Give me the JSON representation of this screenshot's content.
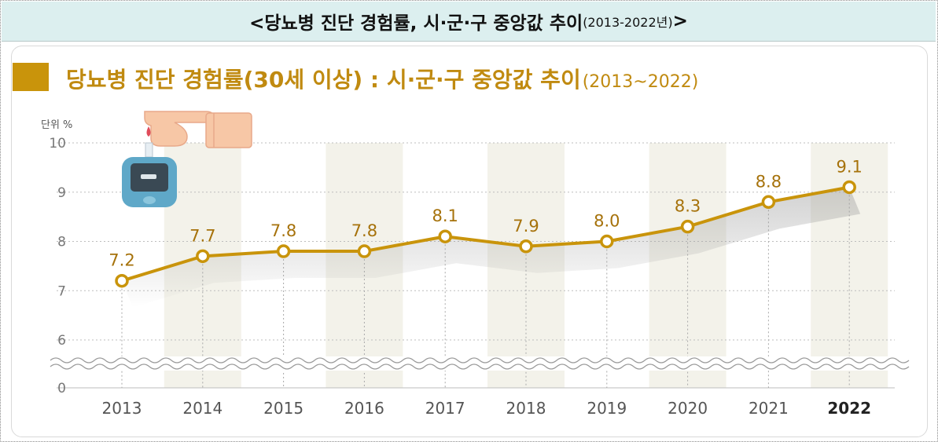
{
  "banner": {
    "title": "<당뇨병 진단 경험률, 시·군·구 중앙값 추이",
    "period": "(2013-2022년)",
    "close": ">"
  },
  "header": {
    "title": "당뇨병 진단 경험률(30세 이상) : 시·군·구 중앙값 추이",
    "period": "(2013~2022)"
  },
  "unit_label": "단위 %",
  "illustration": {
    "icon": "glucose-meter-icon",
    "hand_icon": "pointing-hand-icon"
  },
  "colors": {
    "accent": "#c9940b",
    "line": "#c9940b",
    "band": "#f3f2ea",
    "banner": "#dcefef"
  },
  "chart_data": {
    "type": "line",
    "title": "당뇨병 진단 경험률(30세 이상) : 시·군·구 중앙값 추이(2013~2022)",
    "ylabel": "단위 %",
    "categories": [
      "2013",
      "2014",
      "2015",
      "2016",
      "2017",
      "2018",
      "2019",
      "2020",
      "2021",
      "2022"
    ],
    "values": [
      7.2,
      7.7,
      7.8,
      7.8,
      8.1,
      7.9,
      8.0,
      8.3,
      8.8,
      9.1
    ],
    "value_labels": [
      "7.2",
      "7.7",
      "7.8",
      "7.8",
      "8.1",
      "7.9",
      "8.0",
      "8.3",
      "8.8",
      "9.1"
    ],
    "yticks": [
      "0",
      "6",
      "7",
      "8",
      "9",
      "10"
    ],
    "ylim": [
      6,
      10
    ],
    "axis_break": "between 0 and 6",
    "grid": "horizontal dotted",
    "legend": "none"
  }
}
